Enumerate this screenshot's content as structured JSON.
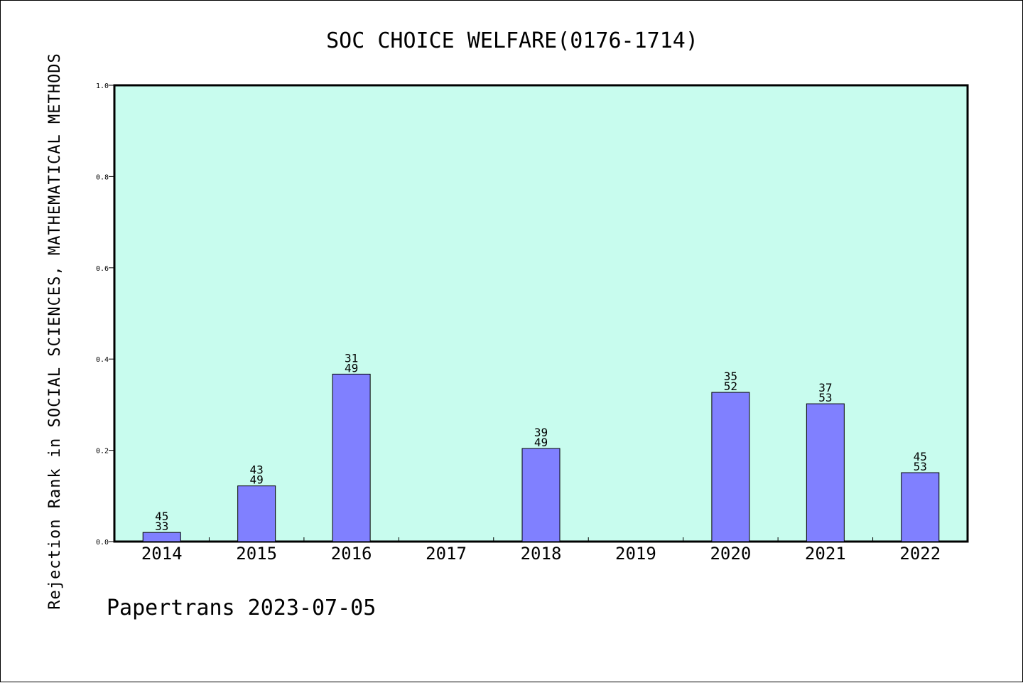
{
  "chart_data": {
    "type": "bar",
    "title": "SOC CHOICE WELFARE(0176-1714)",
    "ylabel": "Rejection Rank in SOCIAL SCIENCES, MATHEMATICAL METHODS",
    "xlabel": "",
    "categories": [
      "2014",
      "2015",
      "2016",
      "2017",
      "2018",
      "2019",
      "2020",
      "2021",
      "2022"
    ],
    "values": [
      0.02,
      0.122,
      0.367,
      null,
      0.204,
      null,
      0.327,
      0.302,
      0.151
    ],
    "bar_labels": [
      [
        "45",
        "33"
      ],
      [
        "43",
        "49"
      ],
      [
        "31",
        "49"
      ],
      null,
      [
        "39",
        "49"
      ],
      null,
      [
        "35",
        "52"
      ],
      [
        "37",
        "53"
      ],
      [
        "45",
        "53"
      ]
    ],
    "ylim": [
      0,
      1.0
    ],
    "yticks": [
      "0.0",
      "0.2",
      "0.4",
      "0.6",
      "0.8",
      "1.0"
    ],
    "grid": false,
    "colors": {
      "plot_background": "#c8fcee",
      "bar_fill": "#8080ff",
      "bar_stroke": "#000000"
    }
  },
  "footer": "Papertrans 2023-07-05"
}
